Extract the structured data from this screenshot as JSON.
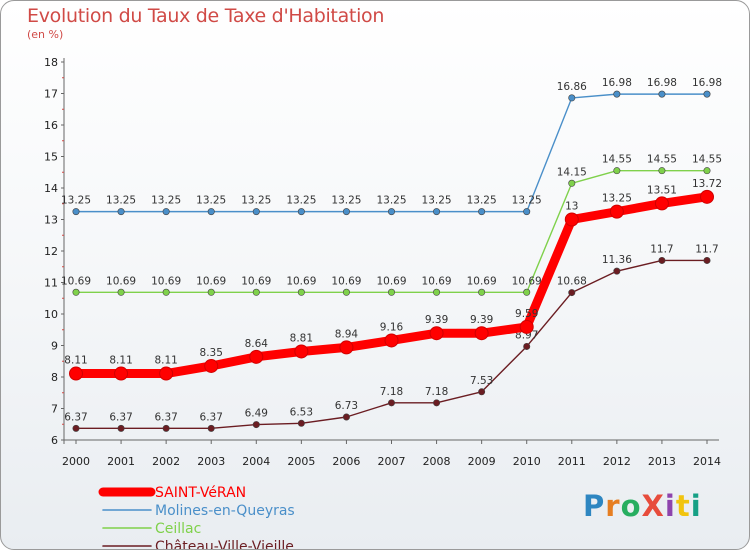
{
  "title": "Evolution du Taux de Taxe d'Habitation",
  "unit_label": "(en %)",
  "logo_text": "ProXiti",
  "logo_colors": [
    "#2e86c1",
    "#e67e22",
    "#27ae60",
    "#e74c3c",
    "#8e44ad",
    "#f1c40f",
    "#16a085"
  ],
  "chart_data": {
    "type": "line",
    "title": "Evolution du Taux de Taxe d'Habitation",
    "ylabel": "(en %)",
    "xlabel": "",
    "x": [
      "2000",
      "2001",
      "2002",
      "2003",
      "2004",
      "2005",
      "2006",
      "2007",
      "2008",
      "2009",
      "2010",
      "2011",
      "2012",
      "2013",
      "2014"
    ],
    "ylim": [
      6,
      18
    ],
    "yticks": [
      6,
      7,
      8,
      9,
      10,
      11,
      12,
      13,
      14,
      15,
      16,
      17,
      18
    ],
    "grid": false,
    "legend_position": "bottom-left",
    "series": [
      {
        "name": "SAINT-VéRAN",
        "color": "#ff0000",
        "emphasis": true,
        "values": [
          8.11,
          8.11,
          8.11,
          8.35,
          8.64,
          8.81,
          8.94,
          9.16,
          9.39,
          9.39,
          9.59,
          13,
          13.25,
          13.51,
          13.72
        ],
        "labels": [
          "8.11",
          "8.11",
          "8.11",
          "8.35",
          "8.64",
          "8.81",
          "8.94",
          "9.16",
          "9.39",
          "9.39",
          "9.59",
          "13",
          "13.25",
          "13.51",
          "13.72"
        ]
      },
      {
        "name": "Molines-en-Queyras",
        "color": "#4a8fc9",
        "values": [
          13.25,
          13.25,
          13.25,
          13.25,
          13.25,
          13.25,
          13.25,
          13.25,
          13.25,
          13.25,
          13.25,
          16.86,
          16.98,
          16.98,
          16.98
        ],
        "labels": [
          "13.25",
          "13.25",
          "13.25",
          "13.25",
          "13.25",
          "13.25",
          "13.25",
          "13.25",
          "13.25",
          "13.25",
          "13.25",
          "16.86",
          "16.98",
          "16.98",
          "16.98"
        ]
      },
      {
        "name": "Ceillac",
        "color": "#7fd14b",
        "values": [
          10.69,
          10.69,
          10.69,
          10.69,
          10.69,
          10.69,
          10.69,
          10.69,
          10.69,
          10.69,
          10.69,
          14.15,
          14.55,
          14.55,
          14.55
        ],
        "labels": [
          "10.69",
          "10.69",
          "10.69",
          "10.69",
          "10.69",
          "10.69",
          "10.69",
          "10.69",
          "10.69",
          "10.69",
          "10.69",
          "14.15",
          "14.55",
          "14.55",
          "14.55"
        ]
      },
      {
        "name": "Château-Ville-Vieille",
        "color": "#6b1d22",
        "values": [
          6.37,
          6.37,
          6.37,
          6.37,
          6.49,
          6.53,
          6.73,
          7.18,
          7.18,
          7.53,
          8.97,
          10.68,
          11.36,
          11.7,
          11.7
        ],
        "labels": [
          "6.37",
          "6.37",
          "6.37",
          "6.37",
          "6.49",
          "6.53",
          "6.73",
          "7.18",
          "7.18",
          "7.53",
          "8.97",
          "10.68",
          "11.36",
          "11.7",
          "11.7"
        ]
      }
    ]
  }
}
